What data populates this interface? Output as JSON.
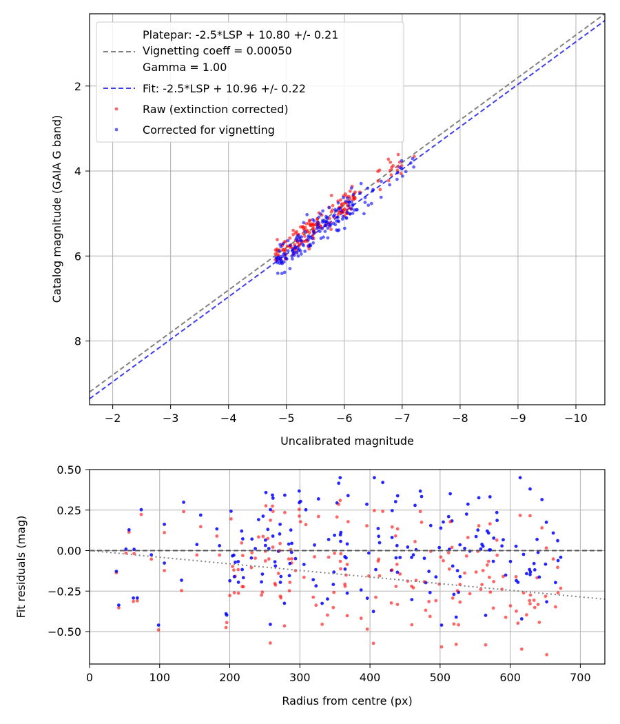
{
  "chart_data": [
    {
      "type": "scatter",
      "id": "top",
      "xlabel": "Uncalibrated magnitude",
      "ylabel": "Catalog magnitude (GAIA G band)",
      "xlim": [
        -1.6,
        -10.5
      ],
      "ylim": [
        0.3,
        9.5
      ],
      "x_inverted": true,
      "y_inverted": true,
      "xticks": [
        -2,
        -3,
        -4,
        -5,
        -6,
        -7,
        -8,
        -9,
        -10
      ],
      "xtick_labels": [
        "−2",
        "−3",
        "−4",
        "−5",
        "−6",
        "−7",
        "−8",
        "−9",
        "−10"
      ],
      "yticks": [
        2,
        4,
        6,
        8
      ],
      "ytick_labels": [
        "2",
        "4",
        "6",
        "8"
      ],
      "grid": true,
      "legend_position": "top-left",
      "legend": {
        "platepar_line1": "Platepar: -2.5*LSP + 10.80 +/- 0.21",
        "platepar_line2": "Vignetting coeff = 0.00050",
        "platepar_line3": "Gamma = 1.00",
        "fit": "Fit: -2.5*LSP + 10.96 +/- 0.22",
        "raw": "Raw (extinction corrected)",
        "corrected": "Corrected for vignetting"
      },
      "lines": [
        {
          "name": "Platepar",
          "slope": 1.0,
          "intercept": 10.8,
          "color": "#808080",
          "style": "dashed"
        },
        {
          "name": "Fit",
          "slope": 1.0,
          "intercept": 10.96,
          "color": "#3c3cf0",
          "style": "dashed"
        }
      ],
      "series": [
        {
          "name": "Raw (extinction corrected)",
          "color": "#ff0000",
          "x_range": [
            -4.7,
            -7.3
          ],
          "offset": 10.8,
          "scatter": 0.3
        },
        {
          "name": "Corrected for vignetting",
          "color": "#0000ff",
          "x_range": [
            -4.7,
            -7.3
          ],
          "offset": 10.96,
          "scatter": 0.25
        }
      ]
    },
    {
      "type": "scatter",
      "id": "bottom",
      "xlabel": "Radius from centre (px)",
      "ylabel": "Fit residuals (mag)",
      "xlim": [
        0,
        735
      ],
      "ylim": [
        -0.7,
        0.5
      ],
      "xticks": [
        0,
        100,
        200,
        300,
        400,
        500,
        600,
        700
      ],
      "xtick_labels": [
        "0",
        "100",
        "200",
        "300",
        "400",
        "500",
        "600",
        "700"
      ],
      "yticks": [
        0.5,
        0.25,
        0.0,
        -0.25,
        -0.5
      ],
      "ytick_labels": [
        "0.50",
        "0.25",
        "0.00",
        "−0.25",
        "−0.50"
      ],
      "grid": true,
      "lines": [
        {
          "name": "zero",
          "points": [
            [
              0,
              0
            ],
            [
              735,
              0
            ]
          ],
          "color": "#555555",
          "style": "dashed"
        },
        {
          "name": "vignetting",
          "points": [
            [
              0,
              0
            ],
            [
              735,
              -0.3
            ]
          ],
          "color": "#808080",
          "style": "dotted"
        }
      ],
      "series": [
        {
          "name": "Raw",
          "color": "#ff0000",
          "radius_range": [
            38,
            675
          ],
          "value_range": [
            -0.66,
            0.45
          ]
        },
        {
          "name": "Corrected",
          "color": "#0000ff",
          "radius_range": [
            38,
            675
          ],
          "value_range": [
            -0.46,
            0.45
          ]
        }
      ]
    }
  ]
}
